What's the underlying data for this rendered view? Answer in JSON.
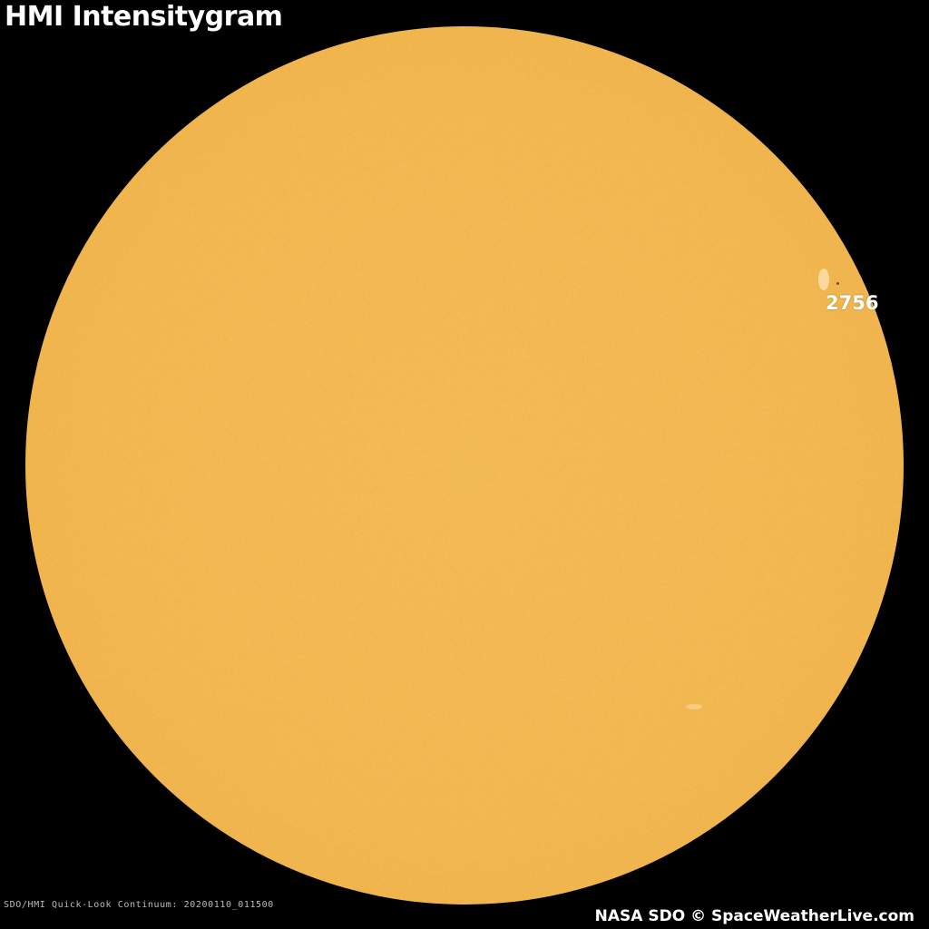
{
  "title": "HMI Intensitygram",
  "metadata_text": "SDO/HMI Quick-Look Continuum: 20200110_011500",
  "credit": "NASA SDO © SpaceWeatherLive.com",
  "regions": [
    {
      "label": "2756"
    }
  ],
  "colors": {
    "background": "#000000",
    "sun_disk": "#f3b850",
    "text": "#ffffff"
  }
}
